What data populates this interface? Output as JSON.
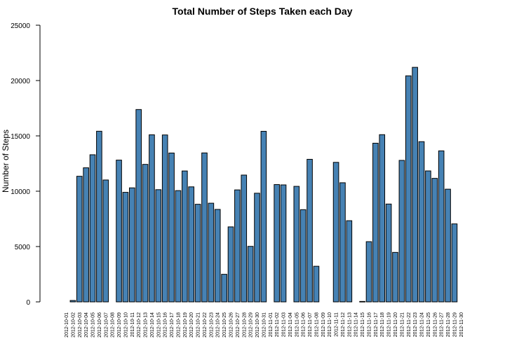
{
  "chart_data": {
    "type": "bar",
    "title": "Total Number of Steps Taken each Day",
    "xlabel": "",
    "ylabel": "Number of Steps",
    "ylim": [
      0,
      25000
    ],
    "yticks": [
      0,
      5000,
      10000,
      15000,
      20000,
      25000
    ],
    "grid": false,
    "bar_color": "#4682B4",
    "categories": [
      "2012-10-01",
      "2012-10-02",
      "2012-10-03",
      "2012-10-04",
      "2012-10-05",
      "2012-10-06",
      "2012-10-07",
      "2012-10-08",
      "2012-10-09",
      "2012-10-10",
      "2012-10-11",
      "2012-10-12",
      "2012-10-13",
      "2012-10-14",
      "2012-10-15",
      "2012-10-16",
      "2012-10-17",
      "2012-10-18",
      "2012-10-19",
      "2012-10-20",
      "2012-10-21",
      "2012-10-22",
      "2012-10-23",
      "2012-10-24",
      "2012-10-25",
      "2012-10-26",
      "2012-10-27",
      "2012-10-28",
      "2012-10-29",
      "2012-10-30",
      "2012-10-31",
      "2012-11-01",
      "2012-11-02",
      "2012-11-03",
      "2012-11-04",
      "2012-11-05",
      "2012-11-06",
      "2012-11-07",
      "2012-11-08",
      "2012-11-09",
      "2012-11-10",
      "2012-11-11",
      "2012-11-12",
      "2012-11-13",
      "2012-11-14",
      "2012-11-15",
      "2012-11-16",
      "2012-11-17",
      "2012-11-18",
      "2012-11-19",
      "2012-11-20",
      "2012-11-21",
      "2012-11-22",
      "2012-11-23",
      "2012-11-24",
      "2012-11-25",
      "2012-11-26",
      "2012-11-27",
      "2012-11-28",
      "2012-11-29",
      "2012-11-30"
    ],
    "values": [
      0,
      126,
      11352,
      12116,
      13294,
      15420,
      11015,
      0,
      12811,
      9900,
      10304,
      17382,
      12426,
      15098,
      10139,
      15084,
      13452,
      10056,
      11829,
      10395,
      8821,
      13460,
      8918,
      8355,
      2492,
      6778,
      10119,
      11458,
      5018,
      9819,
      15414,
      0,
      10600,
      10571,
      0,
      10439,
      8334,
      12883,
      3219,
      0,
      0,
      12608,
      10765,
      7336,
      0,
      41,
      5441,
      14339,
      15110,
      8841,
      4472,
      12787,
      20427,
      21194,
      14478,
      11834,
      11162,
      13646,
      10183,
      7047,
      0
    ]
  }
}
